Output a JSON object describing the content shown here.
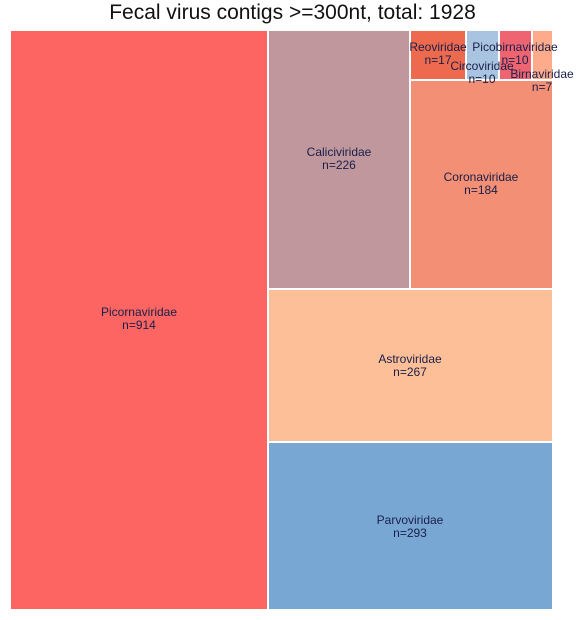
{
  "chart_data": {
    "type": "treemap",
    "title": "Fecal virus contigs >=300nt, total: 1928",
    "count_prefix": "n=",
    "items": [
      {
        "name": "Picornaviridae",
        "value": 914,
        "color": "#fd6562"
      },
      {
        "name": "Parvoviridae",
        "value": 293,
        "color": "#79a7d3"
      },
      {
        "name": "Astroviridae",
        "value": 267,
        "color": "#fdbf97"
      },
      {
        "name": "Caliciviridae",
        "value": 226,
        "color": "#bf979c"
      },
      {
        "name": "Coronaviridae",
        "value": 184,
        "color": "#f28f74"
      },
      {
        "name": "Reoviridae",
        "value": 17,
        "color": "#ee6a4f"
      },
      {
        "name": "Circoviridae",
        "value": 10,
        "color": "#a8c4e0"
      },
      {
        "name": "Picobirnaviridae",
        "value": 10,
        "color": "#ee6470"
      },
      {
        "name": "Birnaviridae",
        "value": 7,
        "color": "#fdab8a"
      }
    ]
  }
}
